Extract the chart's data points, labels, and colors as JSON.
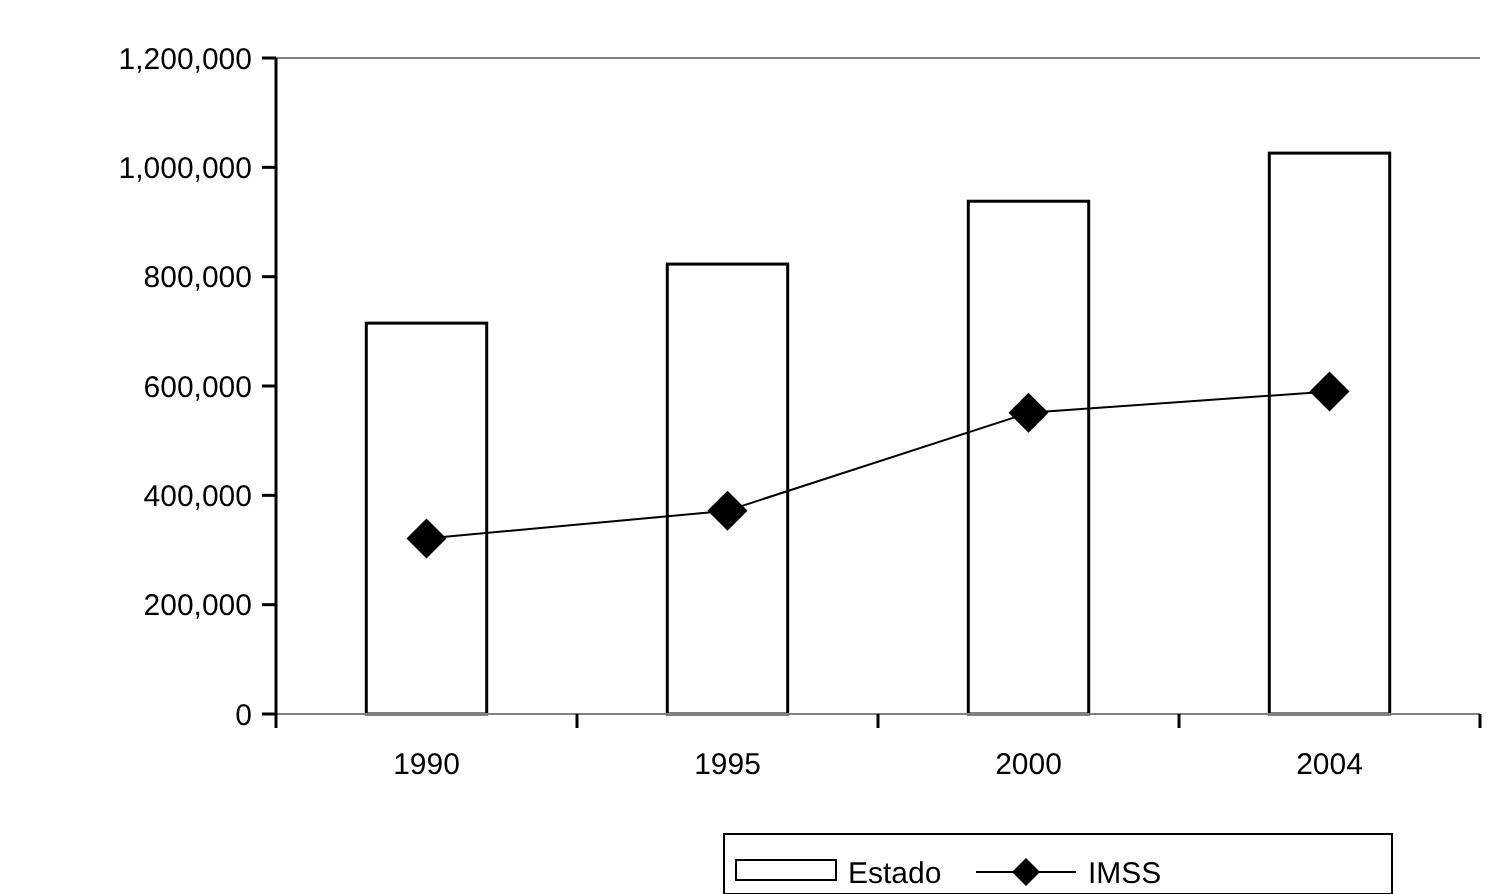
{
  "chart_data": {
    "type": "bar",
    "categories": [
      "1990",
      "1995",
      "2000",
      "2004"
    ],
    "series": [
      {
        "name": "Estado",
        "color": "#ffffff",
        "values": [
          715000,
          823000,
          938000,
          1026000
        ]
      },
      {
        "name": "IMSS",
        "type": "line",
        "color": "#000000",
        "marker": "diamond",
        "values": [
          321000,
          372000,
          551000,
          590000
        ]
      }
    ],
    "ylim": [
      0,
      1200000
    ],
    "yticks": [
      {
        "value": 0,
        "label": "0"
      },
      {
        "value": 200000,
        "label": "200,000"
      },
      {
        "value": 400000,
        "label": "400,000"
      },
      {
        "value": 600000,
        "label": "600,000"
      },
      {
        "value": 800000,
        "label": "800,000"
      },
      {
        "value": 1000000,
        "label": "1,000,000"
      },
      {
        "value": 1200000,
        "label": "1,200,000"
      }
    ],
    "grid": false,
    "legend": "bottom"
  }
}
